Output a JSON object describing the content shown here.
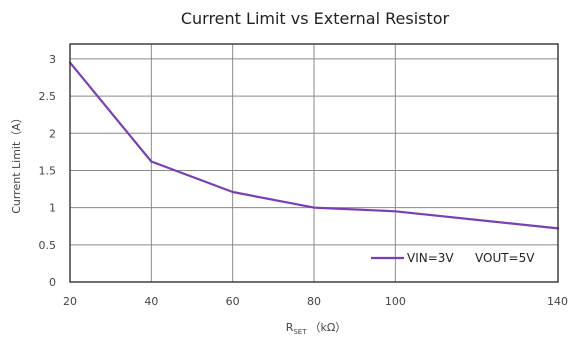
{
  "chart_data": {
    "type": "line",
    "title": "Current Limit vs External Resistor",
    "xlabel": "RSET（kΩ）",
    "xlabel_main": "R",
    "xlabel_sub": "SET",
    "xlabel_unit": "（kΩ）",
    "ylabel": "Current Limit（A）",
    "xlim": [
      20,
      140
    ],
    "ylim": [
      0,
      3.2
    ],
    "x_ticks": [
      "20",
      "40",
      "60",
      "80",
      "100",
      "140"
    ],
    "x_tick_values": [
      20,
      40,
      60,
      80,
      100,
      140
    ],
    "y_ticks": [
      "0",
      "0.5",
      "1",
      "1.5",
      "2",
      "2.5",
      "3"
    ],
    "y_tick_values": [
      0,
      0.5,
      1,
      1.5,
      2,
      2.5,
      3
    ],
    "grid": true,
    "legend": {
      "position": "bottom-right",
      "entries": [
        "VIN=3V",
        "VOUT=5V"
      ]
    },
    "series": [
      {
        "name": "VIN=3V  VOUT=5V",
        "color": "#7b3fb3",
        "x": [
          20,
          40,
          60,
          80,
          100,
          140
        ],
        "y": [
          2.95,
          1.62,
          1.21,
          1.0,
          0.95,
          0.72
        ]
      }
    ]
  }
}
